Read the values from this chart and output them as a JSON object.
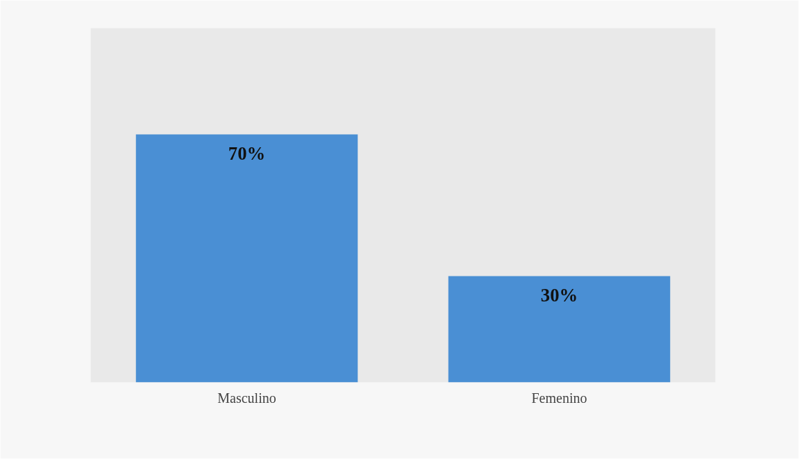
{
  "chart_data": {
    "type": "bar",
    "categories": [
      "Masculino",
      "Femenino"
    ],
    "values": [
      70,
      30
    ],
    "value_labels": [
      "70%",
      "30%"
    ],
    "color": "#4a8fd4",
    "ylim": [
      0,
      100
    ]
  }
}
